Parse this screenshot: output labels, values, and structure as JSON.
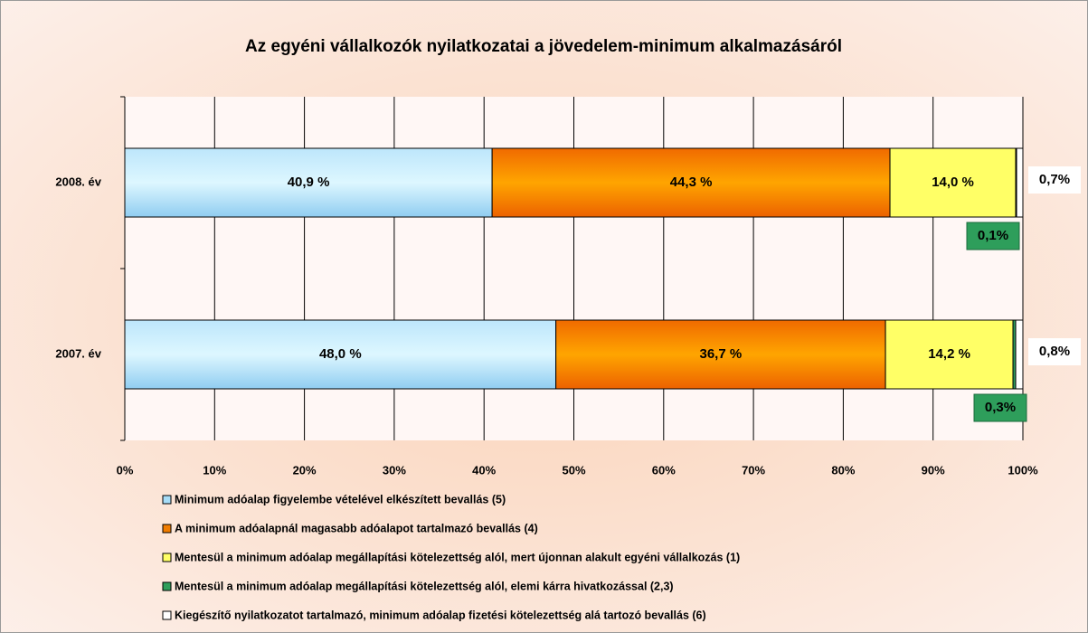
{
  "chart_data": {
    "type": "stacked-barh",
    "title": "Az egyéni vállalkozók nyilatkozatai a jövedelem-minimum alkalmazásáról",
    "categories": [
      "2008. év",
      "2007. év"
    ],
    "series": [
      {
        "name": "Minimum adóalap figyelembe vételével elkészített bevallás (5)",
        "color": "#a6dcf7",
        "values": [
          40.9,
          48.0
        ],
        "value_labels": [
          "40,9 %",
          "48,0 %"
        ]
      },
      {
        "name": "A minimum adóalapnál magasabb adóalapot tartalmazó bevallás (4)",
        "color": "#f07c00",
        "values": [
          44.3,
          36.7
        ],
        "value_labels": [
          "44,3 %",
          "36,7 %"
        ]
      },
      {
        "name": "Mentesül a minimum adóalap megállapítási kötelezettség alól, mert újonnan alakult egyéni vállalkozás (1)",
        "color": "#ffff66",
        "values": [
          14.0,
          14.2
        ],
        "value_labels": [
          "14,0 %",
          "14,2 %"
        ]
      },
      {
        "name": "Mentesül a minimum adóalap megállapítási kötelezettség alól, elemi kárra hivatkozással (2,3)",
        "color": "#2e9e5b",
        "values": [
          0.1,
          0.3
        ],
        "value_labels": [
          "0,1%",
          "0,3%"
        ]
      },
      {
        "name": "Kiegészítő nyilatkozatot tartalmazó, minimum adóalap fizetési kötelezettség alá tartozó bevallás (6)",
        "color": "#ffffff",
        "values": [
          0.7,
          0.8
        ],
        "value_labels": [
          "0,7%",
          "0,8%"
        ]
      }
    ],
    "xlim": [
      0,
      100
    ],
    "xticks": [
      {
        "value": 0,
        "label": "0%"
      },
      {
        "value": 10,
        "label": "10%"
      },
      {
        "value": 20,
        "label": "20%"
      },
      {
        "value": 30,
        "label": "30%"
      },
      {
        "value": 40,
        "label": "40%"
      },
      {
        "value": 50,
        "label": "50%"
      },
      {
        "value": 60,
        "label": "60%"
      },
      {
        "value": 70,
        "label": "70%"
      },
      {
        "value": 80,
        "label": "80%"
      },
      {
        "value": 90,
        "label": "90%"
      },
      {
        "value": 100,
        "label": "100%"
      }
    ],
    "grid": true
  }
}
